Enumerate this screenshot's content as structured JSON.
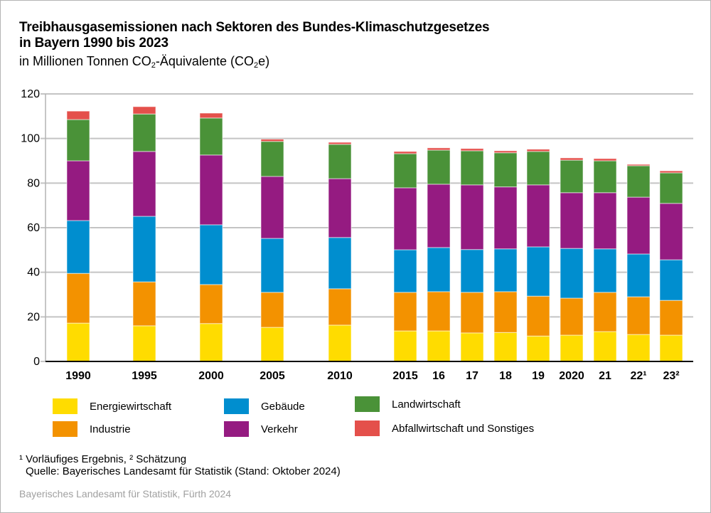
{
  "title": {
    "line1": "Treibhausgasemissionen nach Sektoren des Bundes-Klimaschutzgesetzes",
    "line2": "in Bayern 1990 bis 2023",
    "subtitle_pre": "in Millionen Tonnen CO",
    "subtitle_sub": "2",
    "subtitle_mid": "-Äquivalente (CO",
    "subtitle_sub2": "2",
    "subtitle_post": "e)"
  },
  "chart_data": {
    "type": "bar",
    "stacked": true,
    "title": "Treibhausgasemissionen nach Sektoren des Bundes-Klimaschutzgesetzes in Bayern 1990 bis 2023",
    "subtitle": "in Millionen Tonnen CO2-Äquivalente (CO2e)",
    "xlabel": "",
    "ylabel": "",
    "ylim": [
      0,
      120
    ],
    "yticks": [
      0,
      20,
      40,
      60,
      80,
      100,
      120
    ],
    "grid": true,
    "legend_position": "bottom",
    "categories": [
      "1990",
      "1995",
      "2000",
      "2005",
      "2010",
      "2015",
      "16",
      "17",
      "18",
      "19",
      "2020",
      "21",
      "22¹",
      "23²"
    ],
    "series": [
      {
        "name": "Energiewirtschaft",
        "color": "#ffdc00",
        "values": [
          17.2,
          16.0,
          17.0,
          15.3,
          16.3,
          13.7,
          13.7,
          12.8,
          13.0,
          11.4,
          11.8,
          13.4,
          12.1,
          11.8
        ]
      },
      {
        "name": "Industrie",
        "color": "#f39200",
        "values": [
          22.3,
          19.7,
          17.5,
          15.7,
          16.3,
          17.3,
          17.6,
          18.2,
          18.3,
          17.9,
          16.6,
          17.6,
          16.9,
          15.6
        ]
      },
      {
        "name": "Gebäude",
        "color": "#008ecf",
        "values": [
          23.7,
          29.4,
          26.8,
          24.2,
          23.0,
          19.1,
          19.8,
          19.2,
          19.2,
          22.1,
          22.3,
          19.5,
          19.2,
          18.2
        ]
      },
      {
        "name": "Verkehr",
        "color": "#951b81",
        "values": [
          26.8,
          29.1,
          31.3,
          27.8,
          26.4,
          27.8,
          28.4,
          29.0,
          27.8,
          27.8,
          25.0,
          25.2,
          25.5,
          25.3
        ]
      },
      {
        "name": "Landwirtschaft",
        "color": "#4a9238",
        "values": [
          18.5,
          16.8,
          16.6,
          15.7,
          15.4,
          15.3,
          15.3,
          15.3,
          15.3,
          15.0,
          14.6,
          14.3,
          14.1,
          13.7
        ]
      },
      {
        "name": "Abfallwirtschaft und Sonstiges",
        "color": "#e4504b",
        "values": [
          3.8,
          3.3,
          2.2,
          1.0,
          0.9,
          1.0,
          1.0,
          1.0,
          0.9,
          1.0,
          1.0,
          1.0,
          0.6,
          0.9
        ]
      }
    ]
  },
  "legend": [
    {
      "label": "Energiewirtschaft",
      "color": "#ffdc00"
    },
    {
      "label": "Industrie",
      "color": "#f39200"
    },
    {
      "label": "Gebäude",
      "color": "#008ecf"
    },
    {
      "label": "Verkehr",
      "color": "#951b81"
    },
    {
      "label": "Landwirtschaft",
      "color": "#4a9238"
    },
    {
      "label": "Abfallwirtschaft und Sonstiges",
      "color": "#e4504b"
    }
  ],
  "footnotes": {
    "line1": "¹ Vorläufiges Ergebnis, ² Schätzung",
    "line2": "Quelle: Bayerisches Landesamt für Statistik (Stand: Oktober 2024)"
  },
  "credit": "Bayerisches Landesamt für Statistik, Fürth 2024"
}
